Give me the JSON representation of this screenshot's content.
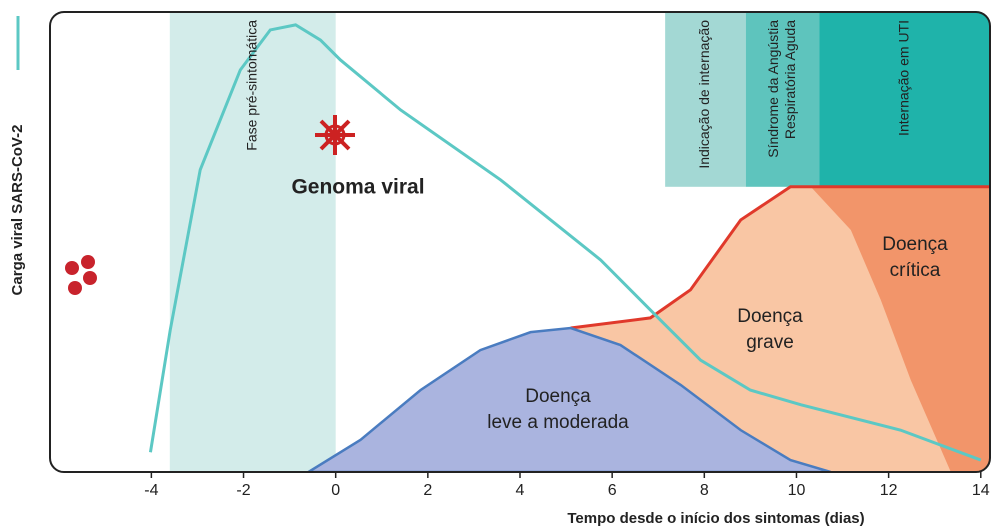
{
  "chart_data": {
    "type": "line",
    "ylabel": "Carga viral SARS-CoV-2",
    "xlabel": "Tempo desde o início dos sintomas (dias)",
    "xlim": [
      -6.2,
      14.2
    ],
    "xticks": [
      -4,
      -2,
      0,
      2,
      4,
      6,
      8,
      10,
      12,
      14
    ],
    "ylim": [
      0,
      100
    ],
    "annotation": "Genoma viral",
    "bands": [
      {
        "label": [
          "Fase pré-sintomática"
        ],
        "start": -3.6,
        "end": 0,
        "color": "#d3ecea",
        "full_height": true
      },
      {
        "label": [
          "Indicação de internação"
        ],
        "start": 7.15,
        "end": 8.9,
        "color": "#a3d8d4",
        "full_height": false
      },
      {
        "label": [
          "Síndrome da Angústia",
          "Respiratória Aguda"
        ],
        "start": 8.9,
        "end": 10.5,
        "color": "#5ec4bd",
        "full_height": false
      },
      {
        "label": [
          "Internação em UTI"
        ],
        "start": 10.5,
        "end": 14.2,
        "color": "#1fb3aa",
        "full_height": false
      }
    ],
    "series": [
      {
        "kind": "viral",
        "color": "#5cc8c4",
        "x": [
          -4.02,
          -3.59,
          -2.94,
          -2.07,
          -1.42,
          -0.87,
          -0.33,
          0.1,
          1.41,
          3.58,
          5.75,
          7.05,
          7.92,
          9.0,
          10.1,
          12.26,
          14.0
        ],
        "values": [
          4.3,
          30.9,
          65.7,
          87.4,
          96.1,
          97.2,
          93.9,
          89.6,
          78.7,
          63.5,
          46.1,
          33.0,
          24.3,
          17.8,
          14.6,
          9.1,
          2.6
        ]
      },
      {
        "kind": "severe",
        "label": [
          "Doença",
          "grave"
        ],
        "color": "#f9c6a4",
        "line_color": "#e0392b",
        "x": [
          5.1,
          6.83,
          7.7,
          8.79,
          9.87,
          14.2
        ],
        "values": [
          31.3,
          33.5,
          39.6,
          54.8,
          62.0,
          62.0
        ]
      },
      {
        "kind": "critical",
        "label": [
          "Doença",
          "crítica"
        ],
        "color": "#f2956a",
        "x": [
          10.31,
          11.18,
          11.83,
          12.48,
          13.35
        ],
        "values": [
          62.0,
          52.6,
          37.4,
          20.0,
          0
        ]
      },
      {
        "kind": "mild",
        "label": [
          "Doença",
          "leve a moderada"
        ],
        "color": "#aab4df",
        "line_color": "#4a7cc0",
        "x": [
          -0.59,
          0.54,
          1.84,
          3.14,
          4.23,
          5.1,
          6.18,
          7.49,
          8.79,
          9.87,
          10.74
        ],
        "values": [
          0,
          7.0,
          17.8,
          26.5,
          30.4,
          31.3,
          27.6,
          18.9,
          9.1,
          2.6,
          0
        ]
      }
    ]
  }
}
